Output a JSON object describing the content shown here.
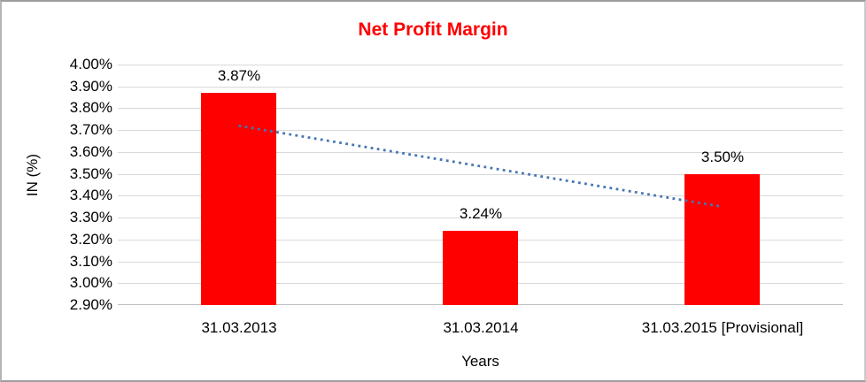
{
  "frame": {
    "background": "#ffffff",
    "border_color": "#9d9d9d"
  },
  "chart_data": {
    "type": "bar",
    "title": "Net Profit Margin",
    "title_color": "#ff0000",
    "xlabel": "Years",
    "ylabel": "IN (%)",
    "categories": [
      "31.03.2013",
      "31.03.2014",
      "31.03.2015 [Provisional]"
    ],
    "values": [
      3.87,
      3.24,
      3.5
    ],
    "value_labels": [
      "3.87%",
      "3.24%",
      "3.50%"
    ],
    "bar_color": "#ff0000",
    "ylim": [
      2.9,
      4.0
    ],
    "ytick_step": 0.1,
    "ytick_labels": [
      "4.00%",
      "3.90%",
      "3.80%",
      "3.70%",
      "3.60%",
      "3.50%",
      "3.40%",
      "3.30%",
      "3.20%",
      "3.10%",
      "3.00%",
      "2.90%"
    ],
    "grid": true,
    "gridline_color": "#d9d9d9",
    "baseline_color": "#bfbfbf",
    "legend": "none",
    "trendline": {
      "type": "linear",
      "style": "dotted",
      "color": "#4576b5",
      "start_value": 3.72,
      "end_value": 3.35
    }
  }
}
